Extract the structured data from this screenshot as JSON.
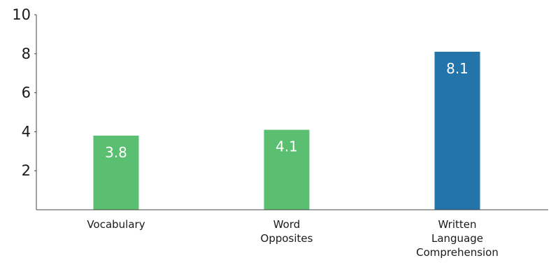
{
  "chart_data": {
    "type": "bar",
    "categories": [
      [
        "Vocabulary"
      ],
      [
        "Word",
        "Opposites"
      ],
      [
        "Written",
        "Language",
        "Comprehension"
      ]
    ],
    "values": [
      3.8,
      4.1,
      8.1
    ],
    "data_labels": [
      "3.8",
      "4.1",
      "8.1"
    ],
    "bar_colors": [
      "#5bbf71",
      "#5bbf71",
      "#2274a9"
    ],
    "yticks": [
      "2",
      "4",
      "6",
      "8",
      "10"
    ],
    "ylim": [
      0,
      10
    ],
    "grid": false,
    "legend": "none"
  }
}
